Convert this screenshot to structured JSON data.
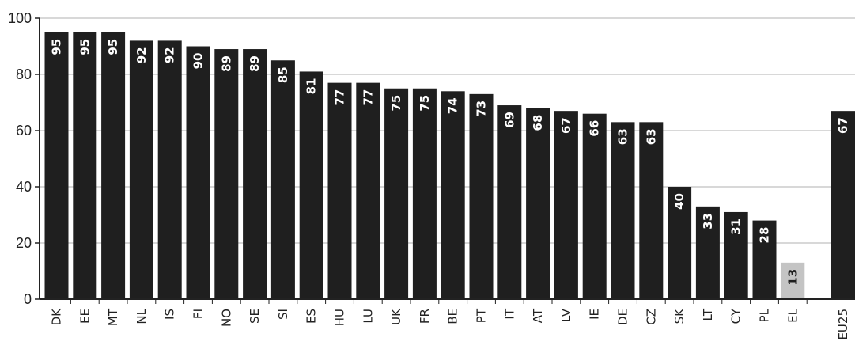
{
  "chart_data": {
    "type": "bar",
    "categories": [
      "DK",
      "EE",
      "MT",
      "NL",
      "IS",
      "FI",
      "NO",
      "SE",
      "SI",
      "ES",
      "HU",
      "LU",
      "UK",
      "FR",
      "BE",
      "PT",
      "IT",
      "AT",
      "LV",
      "IE",
      "DE",
      "CZ",
      "SK",
      "LT",
      "CY",
      "PL",
      "EL",
      "EU25"
    ],
    "values": [
      95,
      95,
      95,
      92,
      92,
      90,
      89,
      89,
      85,
      81,
      77,
      77,
      75,
      75,
      74,
      73,
      69,
      68,
      67,
      66,
      63,
      63,
      40,
      33,
      31,
      28,
      13,
      67
    ],
    "data_labels": [
      "95",
      "95",
      "95",
      "92",
      "92",
      "90",
      "89",
      "89",
      "85",
      "81",
      "77",
      "77",
      "75",
      "75",
      "74",
      "73",
      "69",
      "68",
      "67",
      "66",
      "63",
      "63",
      "40",
      "33",
      "31",
      "28",
      "13",
      "67"
    ],
    "yticks": [
      "0",
      "20",
      "40",
      "60",
      "80",
      "100"
    ],
    "ylim": [
      0,
      100
    ],
    "grid": true,
    "colors": {
      "bar": "#1f1f1f",
      "highlight_bar": "#c4c4c4",
      "label_on_dark": "#ffffff",
      "label_on_light": "#1f1f1f",
      "grid": "#b0b0b0",
      "axis": "#222222"
    },
    "highlight_category": "EL"
  }
}
